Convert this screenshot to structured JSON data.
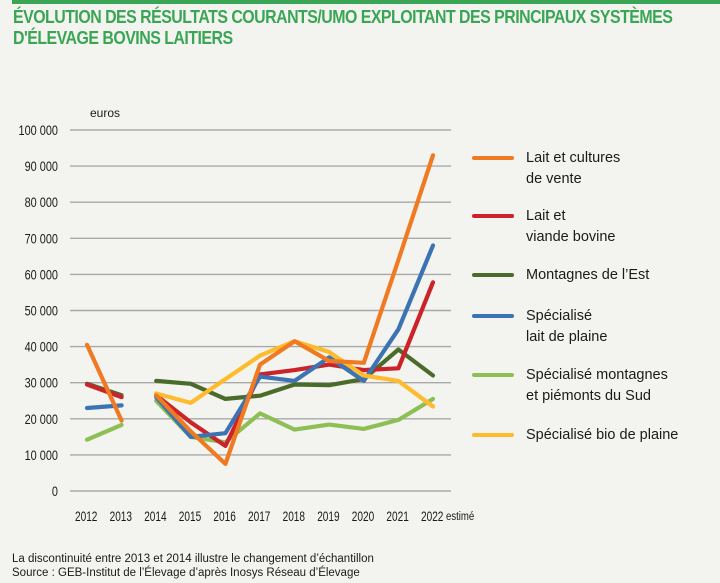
{
  "title_lines": [
    "ÉVOLUTION DES RÉSULTATS COURANTS/UMO EXPLOITANT DES PRINCIPAUX SYSTÈMES",
    "D'ÉLEVAGE BOVINS LAITIERS"
  ],
  "footnotes": [
    "La discontinuité entre 2013 et 2014 illustre le changement d’échantillon",
    "Source : GEB-Institut de l’Élevage d’après Inosys Réseau d’Élevage"
  ],
  "accent_color": "#3aa655",
  "chart_data": {
    "type": "line",
    "title": "Évolution des résultats courants/UMO exploitant des principaux systèmes d'élevage bovins laitiers",
    "xlabel": "",
    "ylabel": "euros",
    "categories": [
      "2012",
      "2013",
      "2014",
      "2015",
      "2016",
      "2017",
      "2018",
      "2019",
      "2020",
      "2021",
      "2022 estimé"
    ],
    "ylim": [
      0,
      100000
    ],
    "yticks": [
      0,
      10000,
      20000,
      30000,
      40000,
      50000,
      60000,
      70000,
      80000,
      90000,
      100000
    ],
    "ytick_labels": [
      "0",
      "10 000",
      "20 000",
      "30 000",
      "40 000",
      "50 000",
      "60 000",
      "70 000",
      "80 000",
      "90 000",
      "100 000"
    ],
    "grid": true,
    "legend_position": "right",
    "break_between": [
      "2013",
      "2014"
    ],
    "series": [
      {
        "name": "Lait et cultures\nde vente",
        "color": "#f07a22",
        "values": [
          40500,
          19500,
          26500,
          16500,
          7500,
          35000,
          41500,
          36000,
          35500,
          64000,
          93000
        ]
      },
      {
        "name": "Lait et\nviande bovine",
        "color": "#cc2229",
        "values": [
          29500,
          26000,
          26500,
          19000,
          12500,
          32300,
          33500,
          35000,
          33500,
          34000,
          57800
        ]
      },
      {
        "name": "Montagnes de l’Est",
        "color": "#4a6b2a",
        "values": [
          29700,
          26500,
          30500,
          29700,
          25500,
          26400,
          29500,
          29300,
          31000,
          39200,
          32000
        ]
      },
      {
        "name": "Spécialisé\nlait de plaine",
        "color": "#3b73b3",
        "values": [
          23000,
          23700,
          26000,
          15000,
          16000,
          31700,
          30500,
          37000,
          30500,
          44800,
          68000
        ]
      },
      {
        "name": "Spécialisé montagnes\net piémonts du Sud",
        "color": "#8dbf55",
        "values": [
          14200,
          18300,
          25000,
          15000,
          13500,
          21500,
          17000,
          18400,
          17200,
          19700,
          25500
        ]
      },
      {
        "name": "Spécialisé bio de plaine",
        "color": "#fdbb2d",
        "values": [
          null,
          null,
          27000,
          24400,
          31000,
          37500,
          41500,
          38500,
          32000,
          30500,
          23400
        ]
      }
    ]
  }
}
